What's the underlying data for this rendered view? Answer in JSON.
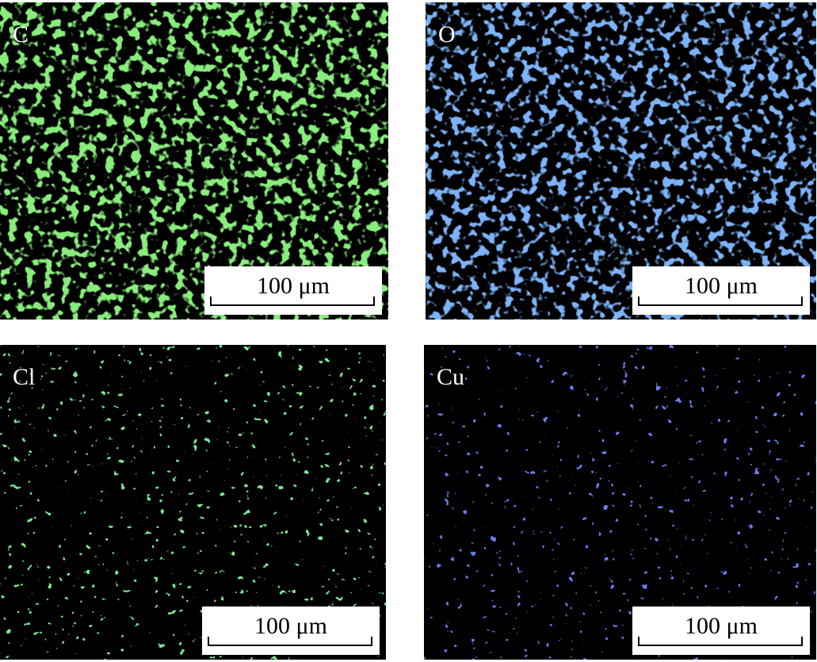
{
  "panels": [
    {
      "label": "C",
      "scale_bar": "100 μm"
    },
    {
      "label": "O",
      "scale_bar": "100 μm"
    },
    {
      "label": "Cl",
      "scale_bar": "100 μm"
    },
    {
      "label": "Cu",
      "scale_bar": "100 μm"
    }
  ]
}
